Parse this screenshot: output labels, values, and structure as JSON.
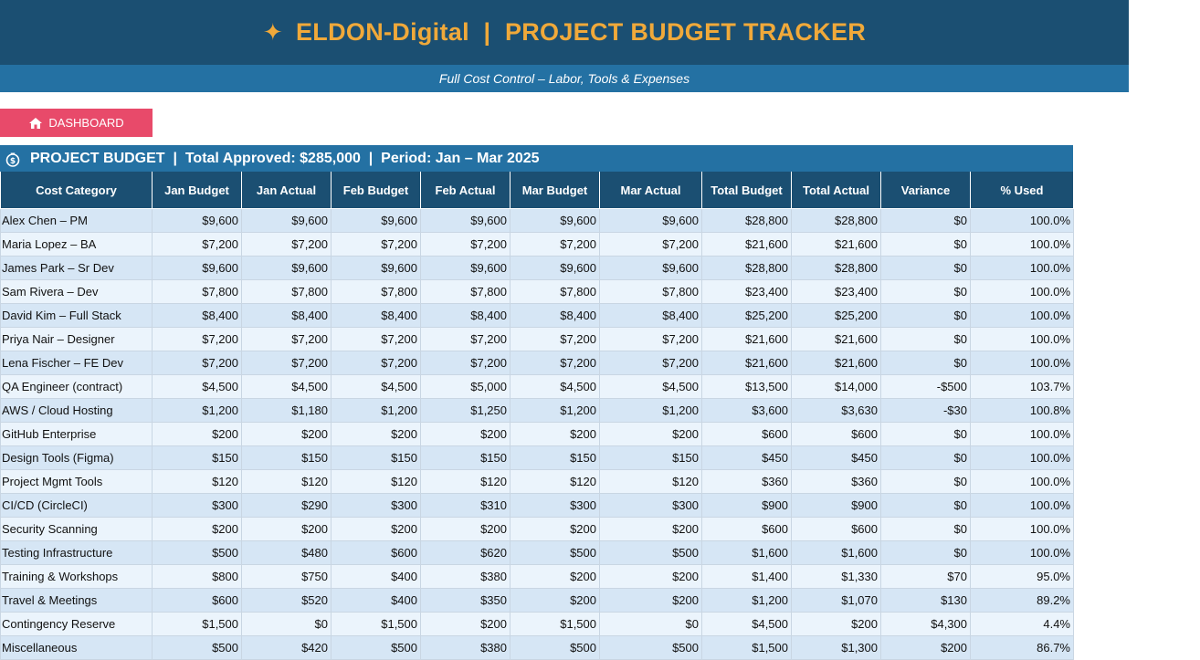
{
  "header": {
    "title": "ELDON-Digital  |  PROJECT BUDGET TRACKER",
    "subtitle": "Full Cost Control – Labor, Tools & Expenses",
    "accent_color": "#f0a93a",
    "banner_color": "#1b4f72",
    "subbanner_color": "#2471a3"
  },
  "dashboard_button": {
    "label": "DASHBOARD",
    "icon": "house-icon",
    "color": "#e84a6a"
  },
  "section": {
    "title": "PROJECT BUDGET  |  Total Approved: $285,000  |  Period: Jan – Mar 2025",
    "icon": "money-bag-icon"
  },
  "table": {
    "columns": [
      "Cost Category",
      "Jan Budget",
      "Jan Actual",
      "Feb Budget",
      "Feb Actual",
      "Mar Budget",
      "Mar Actual",
      "Total Budget",
      "Total Actual",
      "Variance",
      "% Used"
    ],
    "rows": [
      [
        "Alex Chen – PM",
        "$9,600",
        "$9,600",
        "$9,600",
        "$9,600",
        "$9,600",
        "$9,600",
        "$28,800",
        "$28,800",
        "$0",
        "100.0%"
      ],
      [
        "Maria Lopez – BA",
        "$7,200",
        "$7,200",
        "$7,200",
        "$7,200",
        "$7,200",
        "$7,200",
        "$21,600",
        "$21,600",
        "$0",
        "100.0%"
      ],
      [
        "James Park – Sr Dev",
        "$9,600",
        "$9,600",
        "$9,600",
        "$9,600",
        "$9,600",
        "$9,600",
        "$28,800",
        "$28,800",
        "$0",
        "100.0%"
      ],
      [
        "Sam Rivera – Dev",
        "$7,800",
        "$7,800",
        "$7,800",
        "$7,800",
        "$7,800",
        "$7,800",
        "$23,400",
        "$23,400",
        "$0",
        "100.0%"
      ],
      [
        "David Kim – Full Stack",
        "$8,400",
        "$8,400",
        "$8,400",
        "$8,400",
        "$8,400",
        "$8,400",
        "$25,200",
        "$25,200",
        "$0",
        "100.0%"
      ],
      [
        "Priya Nair – Designer",
        "$7,200",
        "$7,200",
        "$7,200",
        "$7,200",
        "$7,200",
        "$7,200",
        "$21,600",
        "$21,600",
        "$0",
        "100.0%"
      ],
      [
        "Lena Fischer – FE Dev",
        "$7,200",
        "$7,200",
        "$7,200",
        "$7,200",
        "$7,200",
        "$7,200",
        "$21,600",
        "$21,600",
        "$0",
        "100.0%"
      ],
      [
        "QA Engineer (contract)",
        "$4,500",
        "$4,500",
        "$4,500",
        "$5,000",
        "$4,500",
        "$4,500",
        "$13,500",
        "$14,000",
        "-$500",
        "103.7%"
      ],
      [
        "AWS / Cloud Hosting",
        "$1,200",
        "$1,180",
        "$1,200",
        "$1,250",
        "$1,200",
        "$1,200",
        "$3,600",
        "$3,630",
        "-$30",
        "100.8%"
      ],
      [
        "GitHub Enterprise",
        "$200",
        "$200",
        "$200",
        "$200",
        "$200",
        "$200",
        "$600",
        "$600",
        "$0",
        "100.0%"
      ],
      [
        "Design Tools (Figma)",
        "$150",
        "$150",
        "$150",
        "$150",
        "$150",
        "$150",
        "$450",
        "$450",
        "$0",
        "100.0%"
      ],
      [
        "Project Mgmt Tools",
        "$120",
        "$120",
        "$120",
        "$120",
        "$120",
        "$120",
        "$360",
        "$360",
        "$0",
        "100.0%"
      ],
      [
        "CI/CD (CircleCI)",
        "$300",
        "$290",
        "$300",
        "$310",
        "$300",
        "$300",
        "$900",
        "$900",
        "$0",
        "100.0%"
      ],
      [
        "Security Scanning",
        "$200",
        "$200",
        "$200",
        "$200",
        "$200",
        "$200",
        "$600",
        "$600",
        "$0",
        "100.0%"
      ],
      [
        "Testing Infrastructure",
        "$500",
        "$480",
        "$600",
        "$620",
        "$500",
        "$500",
        "$1,600",
        "$1,600",
        "$0",
        "100.0%"
      ],
      [
        "Training & Workshops",
        "$800",
        "$750",
        "$400",
        "$380",
        "$200",
        "$200",
        "$1,400",
        "$1,330",
        "$70",
        "95.0%"
      ],
      [
        "Travel & Meetings",
        "$600",
        "$520",
        "$400",
        "$350",
        "$200",
        "$200",
        "$1,200",
        "$1,070",
        "$130",
        "89.2%"
      ],
      [
        "Contingency Reserve",
        "$1,500",
        "$0",
        "$1,500",
        "$200",
        "$1,500",
        "$0",
        "$4,500",
        "$200",
        "$4,300",
        "4.4%"
      ],
      [
        "Miscellaneous",
        "$500",
        "$420",
        "$500",
        "$380",
        "$500",
        "$500",
        "$1,500",
        "$1,300",
        "$200",
        "86.7%"
      ]
    ]
  }
}
